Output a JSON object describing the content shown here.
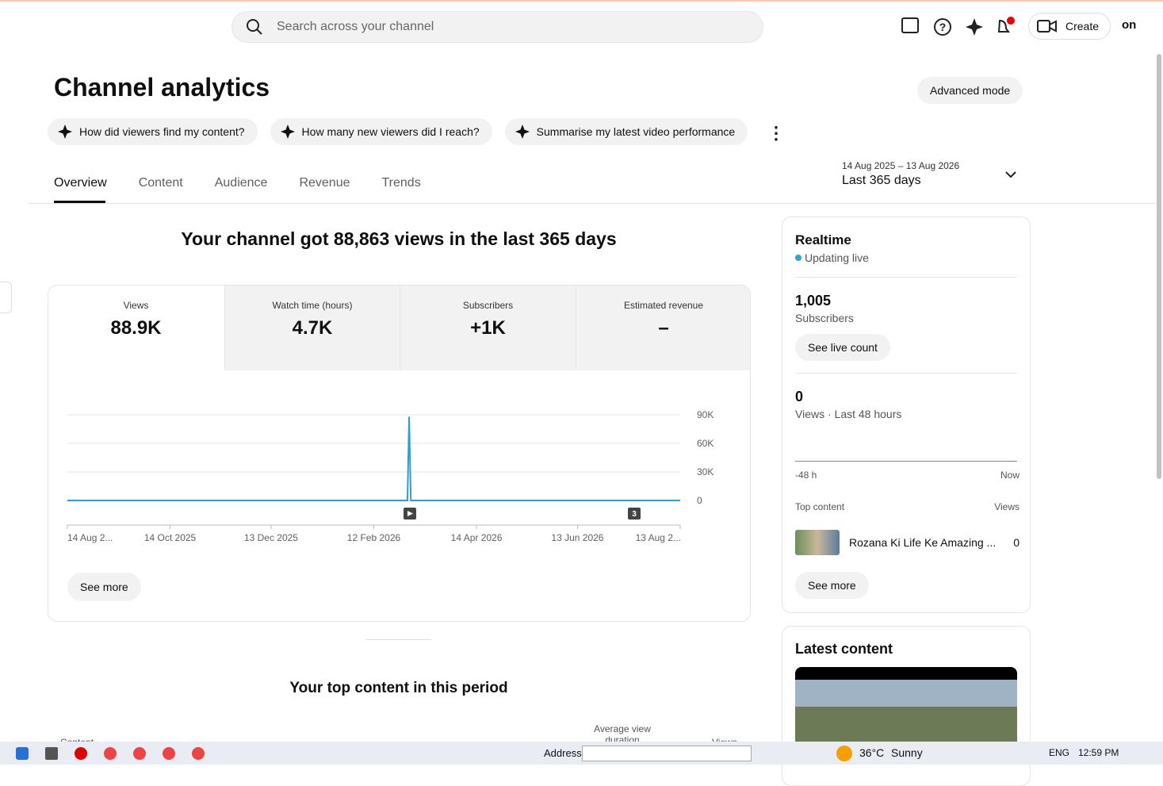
{
  "search": {
    "placeholder": "Search across your channel"
  },
  "topbar": {
    "create": "Create",
    "avatar": "on"
  },
  "header": {
    "title": "Channel analytics",
    "advanced": "Advanced mode"
  },
  "suggestions": [
    "How did viewers find my content?",
    "How many new viewers did I reach?",
    "Summarise my latest video performance"
  ],
  "tabs": [
    "Overview",
    "Content",
    "Audience",
    "Revenue",
    "Trends"
  ],
  "date_range": {
    "dates": "14 Aug 2025 – 13 Aug 2026",
    "label": "Last 365 days"
  },
  "headline": "Your channel got 88,863 views in the last 365 days",
  "metrics": [
    {
      "label": "Views",
      "value": "88.9K"
    },
    {
      "label": "Watch time (hours)",
      "value": "4.7K"
    },
    {
      "label": "Subscribers",
      "value": "+1K"
    },
    {
      "label": "Estimated revenue",
      "value": "–"
    }
  ],
  "chart_data": {
    "type": "line",
    "x": [
      "2025-08-14",
      "2026-03-04",
      "2026-03-05",
      "2026-03-06",
      "2026-08-13"
    ],
    "values": [
      0,
      0,
      88000,
      0,
      0
    ],
    "color": "#2f9fd0",
    "xlim": [
      "2025-08-14",
      "2026-08-13"
    ],
    "xticks": [
      {
        "value": "2025-08-14",
        "label": "14 Aug 2..."
      },
      {
        "value": "2025-10-14",
        "label": "14 Oct 2025"
      },
      {
        "value": "2025-12-13",
        "label": "13 Dec 2025"
      },
      {
        "value": "2026-02-12",
        "label": "12 Feb 2026"
      },
      {
        "value": "2026-04-14",
        "label": "14 Apr 2026"
      },
      {
        "value": "2026-06-13",
        "label": "13 Jun 2026"
      },
      {
        "value": "2026-08-13",
        "label": "13 Aug 2..."
      }
    ],
    "ylim": [
      0,
      90000
    ],
    "yticks": [
      0,
      {
        "value": 30000,
        "label": "30K"
      },
      {
        "value": 60000,
        "label": "60K"
      },
      {
        "value": 90000,
        "label": "90K"
      }
    ],
    "grid": true,
    "annotations": [
      "3"
    ]
  },
  "see_more": "See more",
  "realtime": {
    "title": "Realtime",
    "status": "Updating live",
    "subs": "1,005",
    "subs_label": "Subscribers",
    "live_count": "See live count",
    "views": "0",
    "views_label": "Views · Last 48 hours",
    "axis_start": "-48 h",
    "axis_end": "Now",
    "top_content": "Top content",
    "views_header": "Views",
    "item_title": "Rozana Ki Life Ke Amazing ...",
    "item_views": "0",
    "see_more": "See more"
  },
  "latest": {
    "title": "Latest content"
  },
  "top_content": {
    "title": "Your top content in this period",
    "col_content": "Content",
    "col_avg": "Average view duration",
    "col_views": "Views"
  },
  "taskbar": {
    "address": "Address",
    "temp": "36°C",
    "weather": "Sunny",
    "lang": "ENG",
    "time": "12:59 PM"
  }
}
